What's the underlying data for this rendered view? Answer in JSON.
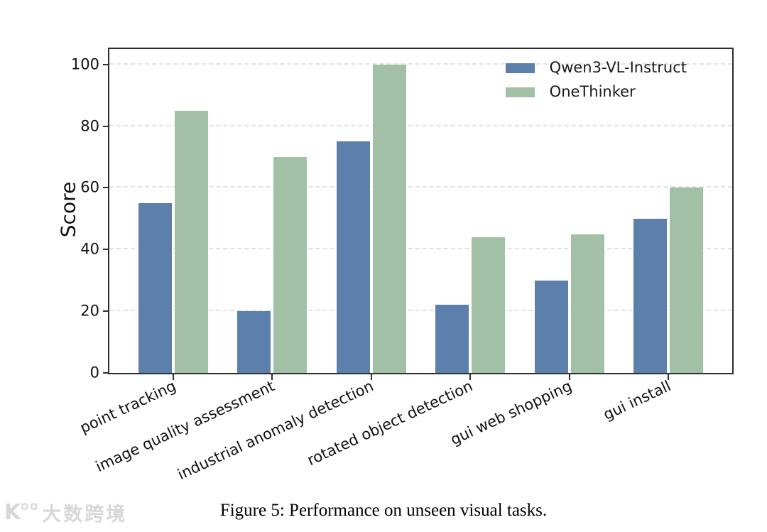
{
  "chart_data": {
    "type": "bar",
    "categories": [
      "point tracking",
      "image quality assessment",
      "industrial anomaly detection",
      "rotated object detection",
      "gui web shopping",
      "gui install"
    ],
    "series": [
      {
        "name": "Qwen3-VL-Instruct",
        "color": "#5d7fab",
        "values": [
          55,
          20,
          75,
          22,
          30,
          50
        ]
      },
      {
        "name": "OneThinker",
        "color": "#a2c0a6",
        "values": [
          85,
          70,
          100,
          44,
          45,
          60
        ]
      }
    ],
    "title": "",
    "xlabel": "",
    "ylabel": "Score",
    "yticks": [
      0,
      20,
      40,
      60,
      80,
      100
    ],
    "ylim": [
      0,
      105
    ],
    "grid": "horizontal-dashed",
    "legend_position": "upper right"
  },
  "caption": {
    "text": "Figure 5: Performance on unseen visual tasks."
  },
  "watermark": {
    "logo": "K°°",
    "text": "大数跨境"
  },
  "colors": {
    "series1": "#5d7fab",
    "series2": "#a2c0a6",
    "spine": "#2f2f2f",
    "gridline": "#e2e2e2",
    "watermark": "#d7d7d7"
  }
}
